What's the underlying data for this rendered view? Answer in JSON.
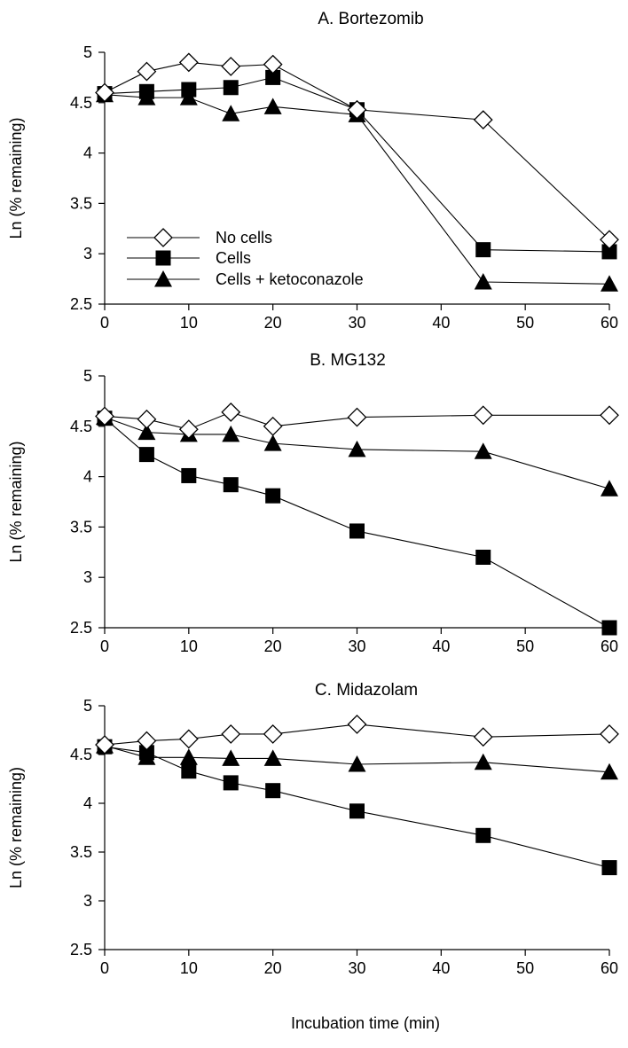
{
  "figure": {
    "xlabel": "Incubation time (min)"
  },
  "chart_data": [
    {
      "type": "line",
      "title": "A.  Bortezomib",
      "ylabel": "Ln (% remaining)",
      "xlim": [
        0,
        60
      ],
      "ylim": [
        2.5,
        5
      ],
      "xticks": [
        0,
        10,
        20,
        30,
        40,
        50,
        60
      ],
      "yticks": [
        2.5,
        3,
        3.5,
        4,
        4.5,
        5
      ],
      "legend_position": "lower-left",
      "series": [
        {
          "name": "No cells",
          "marker": "diamond-open",
          "x": [
            0,
            5,
            10,
            15,
            20,
            30,
            45,
            60
          ],
          "y": [
            4.6,
            4.81,
            4.9,
            4.86,
            4.88,
            4.43,
            4.33,
            3.14
          ]
        },
        {
          "name": "Cells",
          "marker": "square-filled",
          "x": [
            0,
            5,
            10,
            15,
            20,
            30,
            45,
            60
          ],
          "y": [
            4.59,
            4.61,
            4.63,
            4.65,
            4.75,
            4.43,
            3.04,
            3.02
          ]
        },
        {
          "name": "Cells + ketoconazole",
          "marker": "triangle-filled",
          "x": [
            0,
            5,
            10,
            15,
            20,
            30,
            45,
            60
          ],
          "y": [
            4.58,
            4.55,
            4.55,
            4.39,
            4.46,
            4.38,
            2.72,
            2.7
          ]
        }
      ]
    },
    {
      "type": "line",
      "title": "B.  MG132",
      "ylabel": "Ln (% remaining)",
      "xlim": [
        0,
        60
      ],
      "ylim": [
        2.5,
        5
      ],
      "xticks": [
        0,
        10,
        20,
        30,
        40,
        50,
        60
      ],
      "yticks": [
        2.5,
        3,
        3.5,
        4,
        4.5,
        5
      ],
      "series": [
        {
          "name": "No cells",
          "marker": "diamond-open",
          "x": [
            0,
            5,
            10,
            15,
            20,
            30,
            45,
            60
          ],
          "y": [
            4.6,
            4.57,
            4.47,
            4.64,
            4.5,
            4.59,
            4.61,
            4.61
          ]
        },
        {
          "name": "Cells",
          "marker": "square-filled",
          "x": [
            0,
            5,
            10,
            15,
            20,
            30,
            45,
            60
          ],
          "y": [
            4.58,
            4.22,
            4.01,
            3.92,
            3.81,
            3.46,
            3.2,
            2.5
          ]
        },
        {
          "name": "Cells + ketoconazole",
          "marker": "triangle-filled",
          "x": [
            0,
            5,
            10,
            15,
            20,
            30,
            45,
            60
          ],
          "y": [
            4.59,
            4.44,
            4.42,
            4.42,
            4.33,
            4.27,
            4.25,
            3.88
          ]
        }
      ]
    },
    {
      "type": "line",
      "title": "C.  Midazolam",
      "ylabel": "Ln (% remaining)",
      "xlim": [
        0,
        60
      ],
      "ylim": [
        2.5,
        5
      ],
      "xticks": [
        0,
        10,
        20,
        30,
        40,
        50,
        60
      ],
      "yticks": [
        2.5,
        3,
        3.5,
        4,
        4.5,
        5
      ],
      "series": [
        {
          "name": "No cells",
          "marker": "diamond-open",
          "x": [
            0,
            5,
            10,
            15,
            20,
            30,
            45,
            60
          ],
          "y": [
            4.6,
            4.64,
            4.66,
            4.71,
            4.71,
            4.81,
            4.68,
            4.71
          ]
        },
        {
          "name": "Cells",
          "marker": "square-filled",
          "x": [
            0,
            5,
            10,
            15,
            20,
            30,
            45,
            60
          ],
          "y": [
            4.58,
            4.52,
            4.33,
            4.21,
            4.13,
            3.92,
            3.67,
            3.34
          ]
        },
        {
          "name": "Cells + ketoconazole",
          "marker": "triangle-filled",
          "x": [
            0,
            5,
            10,
            15,
            20,
            30,
            45,
            60
          ],
          "y": [
            4.59,
            4.47,
            4.47,
            4.46,
            4.46,
            4.4,
            4.42,
            4.32
          ]
        }
      ]
    }
  ]
}
